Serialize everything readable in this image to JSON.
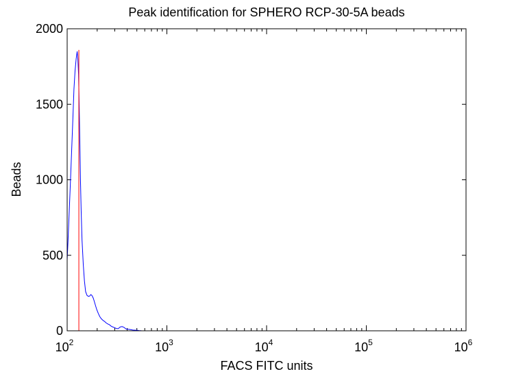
{
  "chart_data": {
    "type": "line",
    "title": "Peak identification for SPHERO RCP-30-5A beads",
    "xlabel": "FACS FITC units",
    "ylabel": "Beads",
    "x_scale": "log",
    "xlim": [
      100,
      1000000
    ],
    "ylim": [
      0,
      2000
    ],
    "x_ticks": [
      {
        "base": "10",
        "exp": "2",
        "value": 100
      },
      {
        "base": "10",
        "exp": "3",
        "value": 1000
      },
      {
        "base": "10",
        "exp": "4",
        "value": 10000
      },
      {
        "base": "10",
        "exp": "5",
        "value": 100000
      },
      {
        "base": "10",
        "exp": "6",
        "value": 1000000
      }
    ],
    "y_ticks": [
      "0",
      "500",
      "1000",
      "1500",
      "2000"
    ],
    "grid": false,
    "legend": "none",
    "series": [
      {
        "color": "#0000ff",
        "x": [
          100,
          102,
          105,
          108,
          111,
          114,
          117,
          120,
          123,
          126,
          128,
          130,
          132,
          134,
          136,
          138,
          141,
          145,
          149,
          153,
          158,
          163,
          168,
          173,
          178,
          183,
          188,
          193,
          198,
          205,
          212,
          220,
          228,
          237,
          246,
          256,
          266,
          277,
          288,
          300,
          313,
          326,
          340,
          355,
          372,
          390,
          410,
          432,
          455,
          480,
          505,
          525,
          545,
          560
        ],
        "y": [
          470,
          600,
          800,
          1000,
          1200,
          1400,
          1600,
          1720,
          1800,
          1850,
          1800,
          1700,
          1500,
          1250,
          1000,
          800,
          600,
          440,
          330,
          260,
          235,
          228,
          230,
          240,
          232,
          215,
          190,
          165,
          140,
          115,
          95,
          80,
          70,
          62,
          52,
          45,
          40,
          30,
          25,
          20,
          15,
          15,
          25,
          28,
          22,
          12,
          10,
          8,
          5,
          4,
          3,
          2,
          1,
          0
        ]
      }
    ],
    "markers": [
      {
        "type": "vertical-line",
        "x": 131,
        "y_top": 1860,
        "color": "#ff0000"
      }
    ]
  }
}
